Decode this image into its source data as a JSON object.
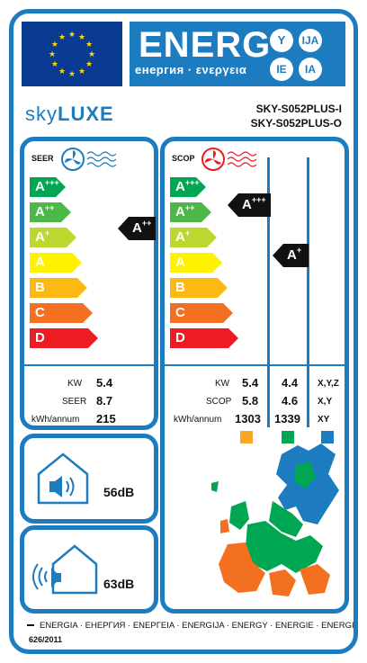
{
  "header": {
    "energy_word": "ENERG",
    "energy_sub": "енергия · ενεργεια",
    "lang_codes": [
      "Y",
      "IJA",
      "IE",
      "IA"
    ],
    "eu_flag_icon": "eu-flag-icon",
    "colors": {
      "blue": "#1d7bbf",
      "eu_blue": "#0b3a93",
      "star": "#ffd700"
    }
  },
  "brand": {
    "part1": "sky",
    "part2": "LUXE"
  },
  "models": {
    "indoor": "SKY-S052PLUS-I",
    "outdoor": "SKY-S052PLUS-O"
  },
  "scale": {
    "classes": [
      {
        "letter": "A",
        "sup": "+++",
        "color": "#00a651"
      },
      {
        "letter": "A",
        "sup": "++",
        "color": "#4cb848"
      },
      {
        "letter": "A",
        "sup": "+",
        "color": "#bed630"
      },
      {
        "letter": "A",
        "sup": "",
        "color": "#fff200"
      },
      {
        "letter": "B",
        "sup": "",
        "color": "#fdb913"
      },
      {
        "letter": "C",
        "sup": "",
        "color": "#f37021"
      },
      {
        "letter": "D",
        "sup": "",
        "color": "#ed1c24"
      }
    ]
  },
  "seer": {
    "label": "SEER",
    "icon": "fan-snowflake-icon",
    "rating": {
      "letter": "A",
      "sup": "++"
    },
    "rows": [
      {
        "label": "KW",
        "value": "5.4"
      },
      {
        "label": "SEER",
        "value": "8.7"
      },
      {
        "label": "kWh/annum",
        "value": "215"
      }
    ]
  },
  "scop": {
    "label": "SCOP",
    "icon": "fan-heat-icon",
    "rating_average": {
      "letter": "A",
      "sup": "+++"
    },
    "rating_warmer": {
      "letter": "A",
      "sup": "+"
    },
    "rows": [
      {
        "label": "KW",
        "values": [
          "5.4",
          "4.4",
          "X,Y,Z"
        ]
      },
      {
        "label": "SCOP",
        "values": [
          "5.8",
          "4.6",
          "X,Y"
        ]
      },
      {
        "label": "kWh/annum",
        "values": [
          "1303",
          "1339",
          "XY"
        ]
      }
    ],
    "zone_colors": [
      "#f7a823",
      "#00a651",
      "#1d7bbf"
    ]
  },
  "noise": {
    "indoor": {
      "icon": "indoor-speaker-house-icon",
      "value": "56dB"
    },
    "outdoor": {
      "icon": "outdoor-speaker-house-icon",
      "value": "63dB"
    }
  },
  "map": {
    "icon": "europe-climate-zones-map"
  },
  "footer": {
    "languages": "ENERGIA · ЕНЕРГИЯ · ENEPΓEIA · ENERGIJA · ENERGY · ENERGIE · ENERGI",
    "regulation": "626/2011"
  }
}
